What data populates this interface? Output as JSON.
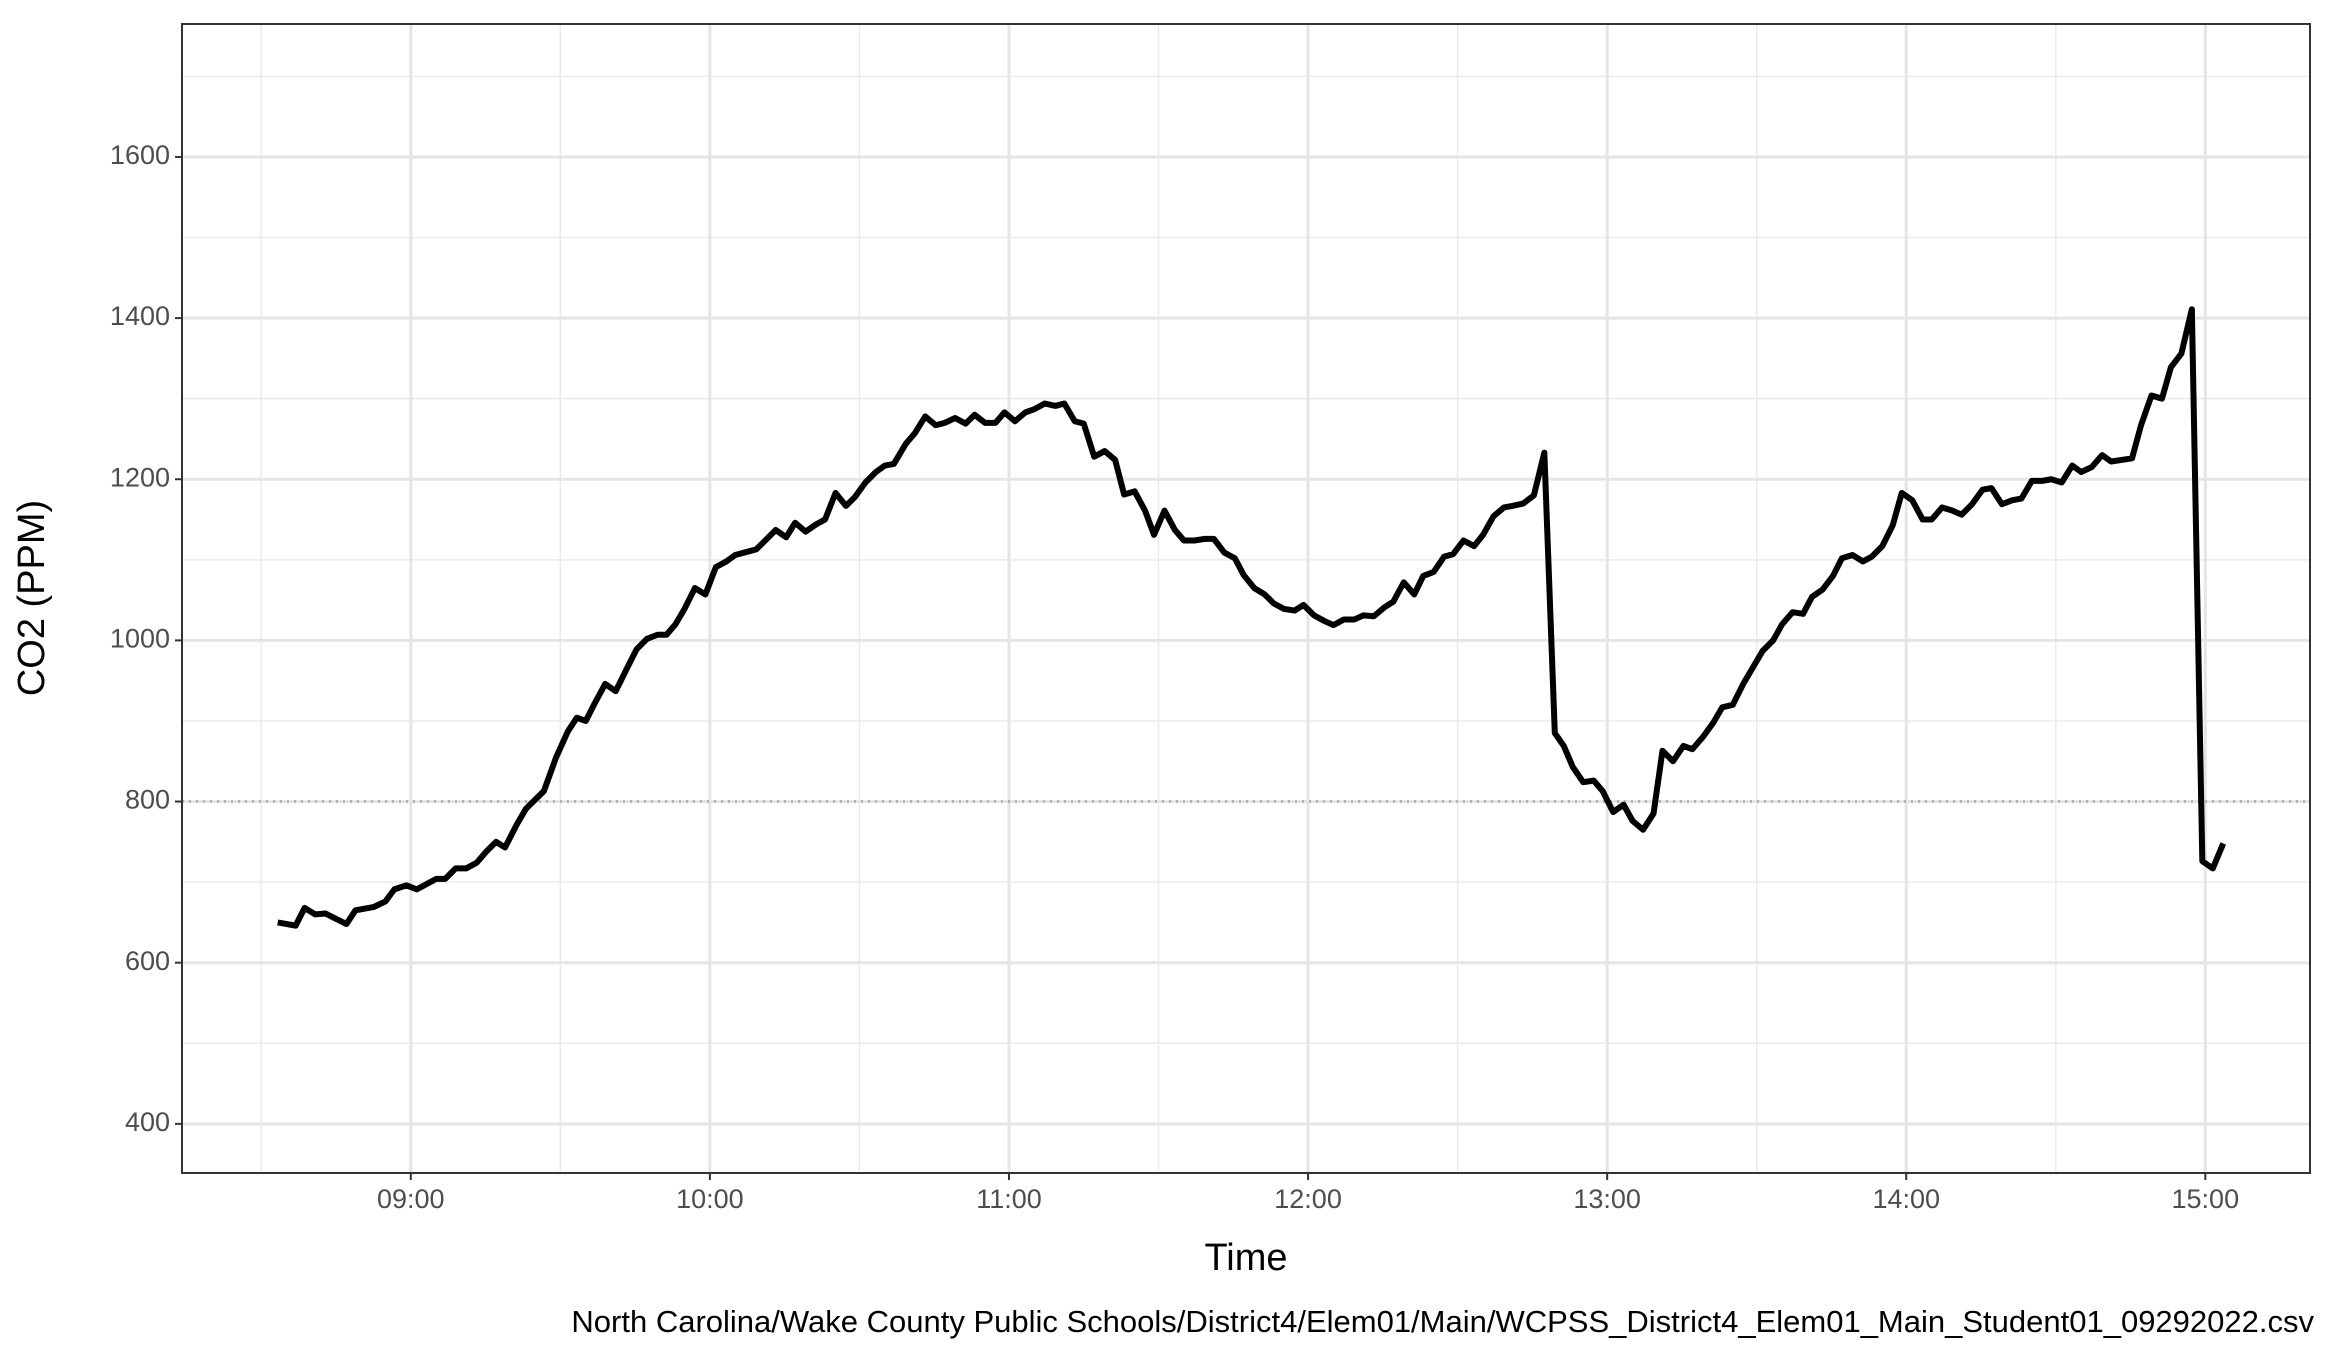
{
  "chart_data": {
    "type": "line",
    "x_label": "Time",
    "y_label": "CO2 (PPM)",
    "caption": "North Carolina/Wake County Public Schools/District4/Elem01/Main/WCPSS_District4_Elem01_Main_Student01_09292022.csv",
    "color": "#000000",
    "grid": true,
    "hline": 800,
    "xlim": [
      8.235,
      15.35
    ],
    "ylim": [
      339,
      1765
    ],
    "xticks": [
      {
        "value": 9,
        "label": "09:00"
      },
      {
        "value": 10,
        "label": "10:00"
      },
      {
        "value": 11,
        "label": "11:00"
      },
      {
        "value": 12,
        "label": "12:00"
      },
      {
        "value": 13,
        "label": "13:00"
      },
      {
        "value": 14,
        "label": "14:00"
      },
      {
        "value": 15,
        "label": "15:00"
      }
    ],
    "yticks": [
      400,
      600,
      800,
      1000,
      1200,
      1400,
      1600
    ],
    "x_minor_ticks": [
      8.5,
      9.5,
      10.5,
      11.5,
      12.5,
      13.5,
      14.5
    ],
    "y_minor_ticks": [
      500,
      700,
      900,
      1100,
      1300,
      1500,
      1700
    ],
    "x": [
      8.555,
      8.615,
      8.645,
      8.68,
      8.715,
      8.785,
      8.815,
      8.875,
      8.915,
      8.945,
      8.985,
      9.02,
      9.085,
      9.115,
      9.15,
      9.185,
      9.22,
      9.255,
      9.285,
      9.315,
      9.355,
      9.385,
      9.445,
      9.485,
      9.525,
      9.555,
      9.585,
      9.615,
      9.65,
      9.685,
      9.725,
      9.755,
      9.79,
      9.825,
      9.855,
      9.885,
      9.915,
      9.95,
      9.985,
      10.02,
      10.055,
      10.085,
      10.115,
      10.155,
      10.185,
      10.22,
      10.255,
      10.285,
      10.32,
      10.355,
      10.385,
      10.42,
      10.455,
      10.485,
      10.52,
      10.555,
      10.585,
      10.615,
      10.655,
      10.685,
      10.72,
      10.755,
      10.785,
      10.82,
      10.855,
      10.885,
      10.92,
      10.955,
      10.985,
      11.02,
      11.055,
      11.085,
      11.12,
      11.155,
      11.185,
      11.22,
      11.25,
      11.285,
      11.32,
      11.355,
      11.385,
      11.42,
      11.455,
      11.485,
      11.52,
      11.555,
      11.585,
      11.62,
      11.655,
      11.685,
      11.72,
      11.755,
      11.785,
      11.82,
      11.855,
      11.885,
      11.92,
      11.955,
      11.985,
      12.02,
      12.055,
      12.085,
      12.12,
      12.155,
      12.185,
      12.22,
      12.255,
      12.285,
      12.32,
      12.355,
      12.385,
      12.42,
      12.455,
      12.485,
      12.52,
      12.555,
      12.585,
      12.62,
      12.655,
      12.685,
      12.72,
      12.755,
      12.79,
      12.825,
      12.855,
      12.885,
      12.92,
      12.955,
      12.985,
      13.02,
      13.055,
      13.085,
      13.12,
      13.155,
      13.185,
      13.22,
      13.255,
      13.285,
      13.32,
      13.355,
      13.385,
      13.42,
      13.455,
      13.485,
      13.52,
      13.555,
      13.585,
      13.62,
      13.655,
      13.685,
      13.72,
      13.755,
      13.785,
      13.82,
      13.855,
      13.885,
      13.92,
      13.955,
      13.985,
      14.02,
      14.055,
      14.085,
      14.12,
      14.155,
      14.185,
      14.22,
      14.255,
      14.285,
      14.32,
      14.355,
      14.385,
      14.42,
      14.455,
      14.485,
      14.52,
      14.555,
      14.585,
      14.62,
      14.655,
      14.685,
      14.72,
      14.755,
      14.785,
      14.82,
      14.855,
      14.885,
      14.92,
      14.955,
      14.99,
      15.025,
      15.06
    ],
    "values": [
      650,
      646,
      668,
      660,
      661,
      648,
      665,
      669,
      676,
      691,
      696,
      691,
      704,
      704,
      717,
      717,
      724,
      739,
      750,
      743,
      772,
      791,
      813,
      854,
      887,
      904,
      900,
      922,
      946,
      937,
      967,
      989,
      1002,
      1007,
      1007,
      1020,
      1039,
      1065,
      1057,
      1091,
      1098,
      1106,
      1109,
      1113,
      1124,
      1137,
      1128,
      1146,
      1135,
      1144,
      1150,
      1183,
      1167,
      1178,
      1196,
      1209,
      1217,
      1219,
      1244,
      1257,
      1278,
      1267,
      1270,
      1276,
      1269,
      1280,
      1270,
      1270,
      1283,
      1272,
      1283,
      1287,
      1294,
      1291,
      1294,
      1272,
      1269,
      1228,
      1235,
      1224,
      1181,
      1185,
      1161,
      1131,
      1161,
      1137,
      1124,
      1124,
      1126,
      1126,
      1109,
      1102,
      1081,
      1065,
      1057,
      1046,
      1039,
      1037,
      1044,
      1031,
      1024,
      1019,
      1026,
      1026,
      1031,
      1030,
      1041,
      1048,
      1072,
      1057,
      1080,
      1085,
      1104,
      1107,
      1124,
      1117,
      1131,
      1154,
      1165,
      1167,
      1170,
      1180,
      1233,
      885,
      869,
      843,
      824,
      826,
      813,
      787,
      796,
      776,
      765,
      785,
      863,
      850,
      869,
      865,
      880,
      898,
      917,
      920,
      946,
      965,
      987,
      1000,
      1020,
      1035,
      1033,
      1054,
      1063,
      1080,
      1102,
      1106,
      1098,
      1104,
      1117,
      1143,
      1183,
      1174,
      1150,
      1150,
      1165,
      1161,
      1156,
      1169,
      1187,
      1189,
      1169,
      1174,
      1176,
      1198,
      1198,
      1200,
      1196,
      1217,
      1209,
      1215,
      1230,
      1222,
      1224,
      1226,
      1267,
      1304,
      1300,
      1339,
      1356,
      1411,
      726,
      717,
      748
    ]
  }
}
